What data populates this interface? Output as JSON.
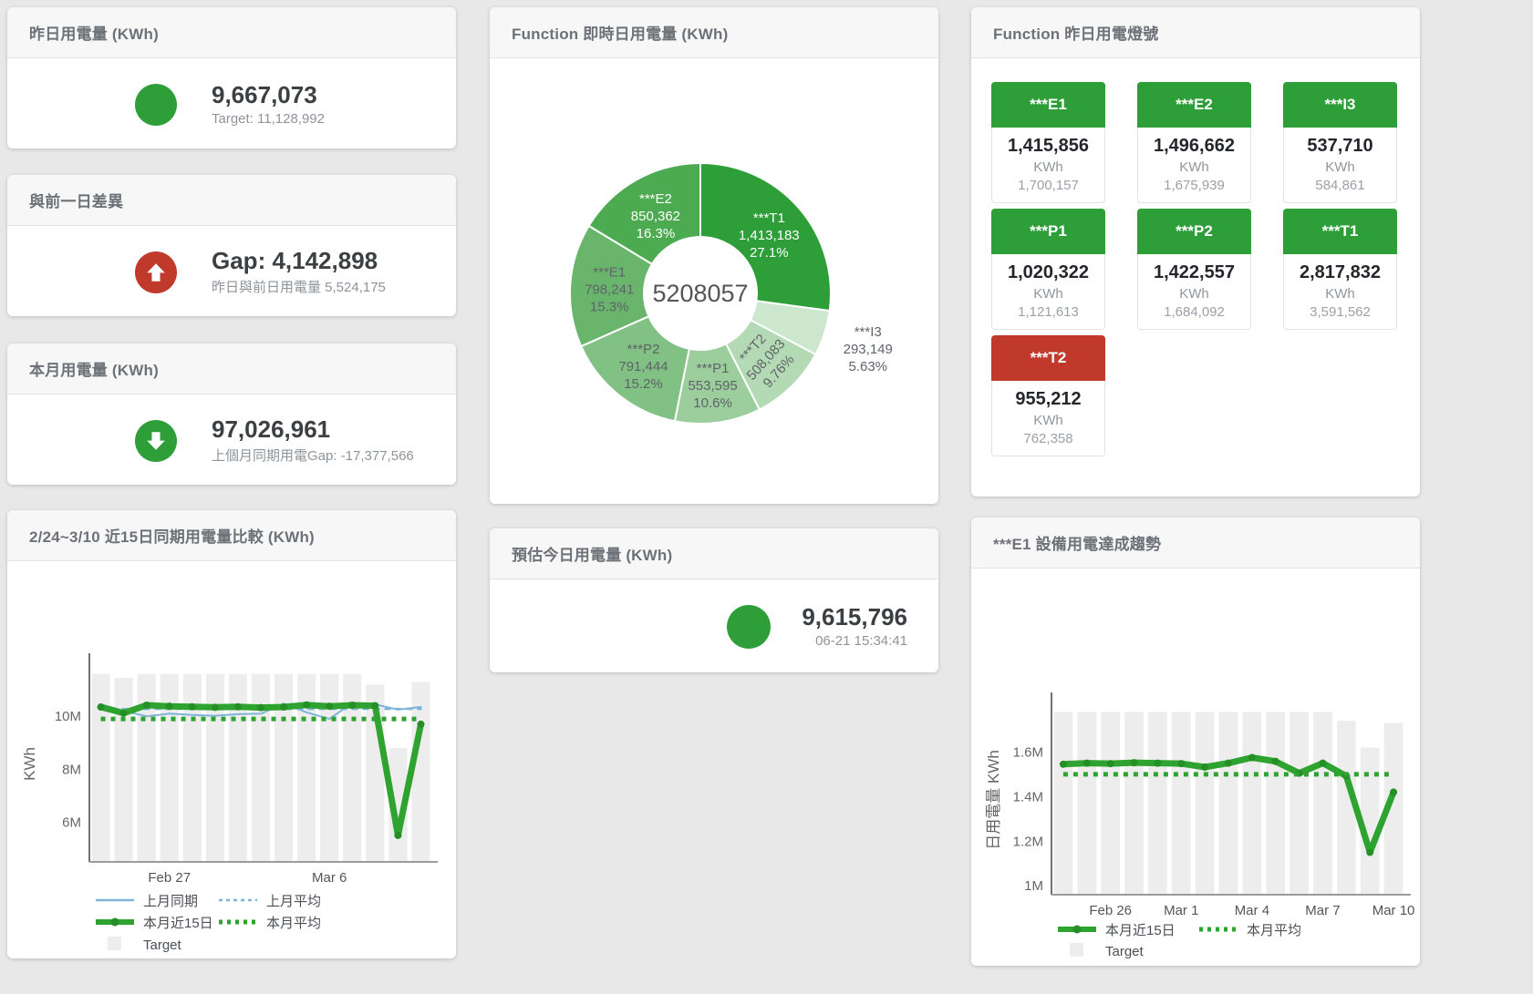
{
  "cards": {
    "yesterday": {
      "title": "昨日用電量 (KWh)",
      "value": "9,667,073",
      "subtitle": "Target: 11,128,992",
      "status_color": "#2e9e38"
    },
    "gap": {
      "title": "與前一日差異",
      "value": "Gap: 4,142,898",
      "subtitle": "昨日與前日用電量 5,524,175",
      "status_color": "#c0392b"
    },
    "month": {
      "title": "本月用電量 (KWh)",
      "value": "97,026,961",
      "subtitle": "上個月同期用電Gap: -17,377,566",
      "status_color": "#2e9e38"
    },
    "forecast": {
      "title": "預估今日用電量 (KWh)",
      "value": "9,615,796",
      "subtitle": "06-21 15:34:41",
      "status_color": "#2e9e38"
    },
    "realtime": {
      "title": "Function 即時日用電量 (KWh)"
    },
    "lights": {
      "title": "Function 昨日用電燈號",
      "tiles": [
        {
          "label": "***E1",
          "value": "1,415,856",
          "unit": "KWh",
          "target": "1,700,157",
          "status": "green"
        },
        {
          "label": "***E2",
          "value": "1,496,662",
          "unit": "KWh",
          "target": "1,675,939",
          "status": "green"
        },
        {
          "label": "***I3",
          "value": "537,710",
          "unit": "KWh",
          "target": "584,861",
          "status": "green"
        },
        {
          "label": "***P1",
          "value": "1,020,322",
          "unit": "KWh",
          "target": "1,121,613",
          "status": "green"
        },
        {
          "label": "***P2",
          "value": "1,422,557",
          "unit": "KWh",
          "target": "1,684,092",
          "status": "green"
        },
        {
          "label": "***T1",
          "value": "2,817,832",
          "unit": "KWh",
          "target": "3,591,562",
          "status": "green"
        },
        {
          "label": "***T2",
          "value": "955,212",
          "unit": "KWh",
          "target": "762,358",
          "status": "red"
        }
      ]
    },
    "compare": {
      "title": "2/24~3/10 近15日同期用電量比較 (KWh)"
    },
    "trend": {
      "title": "***E1 設備用電達成趨勢"
    }
  },
  "colors": {
    "green": "#2e9e38",
    "red": "#c0392b",
    "line_green": "#2fa32f",
    "line_green_dot": "#248f24",
    "line_blue": "#7db4d8",
    "target_bar": "#ededed"
  },
  "chart_data": [
    {
      "id": "donut-realtime",
      "type": "pie",
      "title": "Function 即時日用電量 (KWh)",
      "center_label": "5208057",
      "slices": [
        {
          "name": "***T1",
          "value": 1413183,
          "display": "1,413,183",
          "pct": "27.1%",
          "color": "#2e9e38",
          "label_color": "#ffffff"
        },
        {
          "name": "***I3",
          "value": 293149,
          "display": "293,149",
          "pct": "5.63%",
          "color": "#cde6ce",
          "label_color": "#5f6368",
          "label_outside": true
        },
        {
          "name": "***T2",
          "value": 508083,
          "display": "508,083",
          "pct": "9.76%",
          "color": "#b4dab5",
          "label_color": "#5f6368",
          "label_rotate": -48
        },
        {
          "name": "***P1",
          "value": 553595,
          "display": "553,595",
          "pct": "10.6%",
          "color": "#9bcd9d",
          "label_color": "#5f6368"
        },
        {
          "name": "***P2",
          "value": 791444,
          "display": "791,444",
          "pct": "15.2%",
          "color": "#81c184",
          "label_color": "#5f6368"
        },
        {
          "name": "***E1",
          "value": 798241,
          "display": "798,241",
          "pct": "15.3%",
          "color": "#69b56c",
          "label_color": "#5f6368"
        },
        {
          "name": "***E2",
          "value": 850362,
          "display": "850,362",
          "pct": "16.3%",
          "color": "#4caa50",
          "label_color": "#ffffff"
        }
      ]
    },
    {
      "id": "chart-compare",
      "type": "line",
      "title": "2/24~3/10 近15日同期用電量比較 (KWh)",
      "ylabel": "KWh",
      "ymin": 4500000,
      "ymax": 11900000,
      "yticks": [
        {
          "v": 6000000,
          "label": "6M"
        },
        {
          "v": 8000000,
          "label": "8M"
        },
        {
          "v": 10000000,
          "label": "10M"
        }
      ],
      "categories": [
        "2/24",
        "2/25",
        "2/26",
        "2/27",
        "2/28",
        "3/1",
        "3/2",
        "3/3",
        "3/4",
        "3/5",
        "3/6",
        "3/7",
        "3/8",
        "3/9",
        "3/10"
      ],
      "xticks": [
        {
          "index": 3,
          "label": "Feb 27"
        },
        {
          "index": 10,
          "label": "Mar 6"
        }
      ],
      "bars": {
        "name": "Target",
        "color": "#ededed",
        "values": [
          11600000,
          11450000,
          11600000,
          11600000,
          11600000,
          11600000,
          11600000,
          11600000,
          11600000,
          11600000,
          11600000,
          11600000,
          11200000,
          8800000,
          11300000
        ]
      },
      "series": [
        {
          "name": "上月同期",
          "style": "solid",
          "color": "#7db4d8",
          "width": 2,
          "values": [
            10450000,
            10200000,
            10000000,
            10100000,
            10050000,
            10020000,
            10080000,
            10100000,
            10480000,
            10150000,
            9900000,
            10500000,
            10450000,
            10250000,
            10350000
          ]
        },
        {
          "name": "上月平均",
          "style": "dashed",
          "color": "#7db4d8",
          "width": 2.5,
          "values": [
            10280000,
            10280000,
            10280000,
            10280000,
            10280000,
            10280000,
            10280000,
            10280000,
            10280000,
            10280000,
            10280000,
            10280000,
            10280000,
            10280000,
            10280000
          ]
        },
        {
          "name": "本月近15日",
          "style": "thick",
          "color": "#2fa32f",
          "width": 7,
          "marker": true,
          "marker_color": "#248f24",
          "values": [
            10350000,
            10120000,
            10420000,
            10380000,
            10360000,
            10340000,
            10360000,
            10330000,
            10350000,
            10430000,
            10380000,
            10420000,
            10400000,
            5500000,
            9700000
          ]
        },
        {
          "name": "本月平均",
          "style": "dotted",
          "color": "#2fa32f",
          "width": 5,
          "values": [
            9900000,
            9900000,
            9900000,
            9900000,
            9900000,
            9900000,
            9900000,
            9900000,
            9900000,
            9900000,
            9900000,
            9900000,
            9900000,
            9900000,
            9900000
          ]
        }
      ],
      "legend": [
        [
          {
            "label": "上月同期",
            "swatch": "solid",
            "color": "#7db4d8"
          },
          {
            "label": "上月平均",
            "swatch": "dashed",
            "color": "#7db4d8"
          }
        ],
        [
          {
            "label": "本月近15日",
            "swatch": "thick",
            "color": "#2fa32f"
          },
          {
            "label": "本月平均",
            "swatch": "dotted",
            "color": "#2fa32f"
          }
        ],
        [
          {
            "label": "Target",
            "swatch": "square",
            "color": "#ededed"
          }
        ]
      ]
    },
    {
      "id": "chart-trend",
      "type": "line",
      "title": "***E1 設備用電達成趨勢",
      "ylabel": "日用電量 KWh",
      "ymin": 960000,
      "ymax": 1810000,
      "yticks": [
        {
          "v": 1000000,
          "label": "1M"
        },
        {
          "v": 1200000,
          "label": "1.2M"
        },
        {
          "v": 1400000,
          "label": "1.4M"
        },
        {
          "v": 1600000,
          "label": "1.6M"
        }
      ],
      "categories": [
        "2/24",
        "2/25",
        "2/26",
        "2/27",
        "2/28",
        "3/1",
        "3/2",
        "3/3",
        "3/4",
        "3/5",
        "3/6",
        "3/7",
        "3/8",
        "3/9",
        "3/10"
      ],
      "xticks": [
        {
          "index": 2,
          "label": "Feb 26"
        },
        {
          "index": 5,
          "label": "Mar 1"
        },
        {
          "index": 8,
          "label": "Mar 4"
        },
        {
          "index": 11,
          "label": "Mar 7"
        },
        {
          "index": 14,
          "label": "Mar 10"
        }
      ],
      "bars": {
        "name": "Target",
        "color": "#ededed",
        "values": [
          1780000,
          1780000,
          1780000,
          1780000,
          1780000,
          1780000,
          1780000,
          1780000,
          1780000,
          1780000,
          1780000,
          1780000,
          1740000,
          1620000,
          1730000
        ]
      },
      "series": [
        {
          "name": "本月近15日",
          "style": "thick",
          "color": "#2fa32f",
          "width": 7,
          "marker": true,
          "marker_color": "#248f24",
          "values": [
            1545000,
            1550000,
            1548000,
            1552000,
            1550000,
            1548000,
            1532000,
            1550000,
            1575000,
            1558000,
            1505000,
            1550000,
            1492000,
            1150000,
            1420000
          ]
        },
        {
          "name": "本月平均",
          "style": "dotted",
          "color": "#2fa32f",
          "width": 5,
          "values": [
            1500000,
            1500000,
            1500000,
            1500000,
            1500000,
            1500000,
            1500000,
            1500000,
            1500000,
            1500000,
            1500000,
            1500000,
            1500000,
            1500000,
            1500000
          ]
        }
      ],
      "legend": [
        [
          {
            "label": "本月近15日",
            "swatch": "thick",
            "color": "#2fa32f"
          },
          {
            "label": "本月平均",
            "swatch": "dotted",
            "color": "#2fa32f"
          }
        ],
        [
          {
            "label": "Target",
            "swatch": "square",
            "color": "#ededed"
          }
        ]
      ]
    }
  ]
}
